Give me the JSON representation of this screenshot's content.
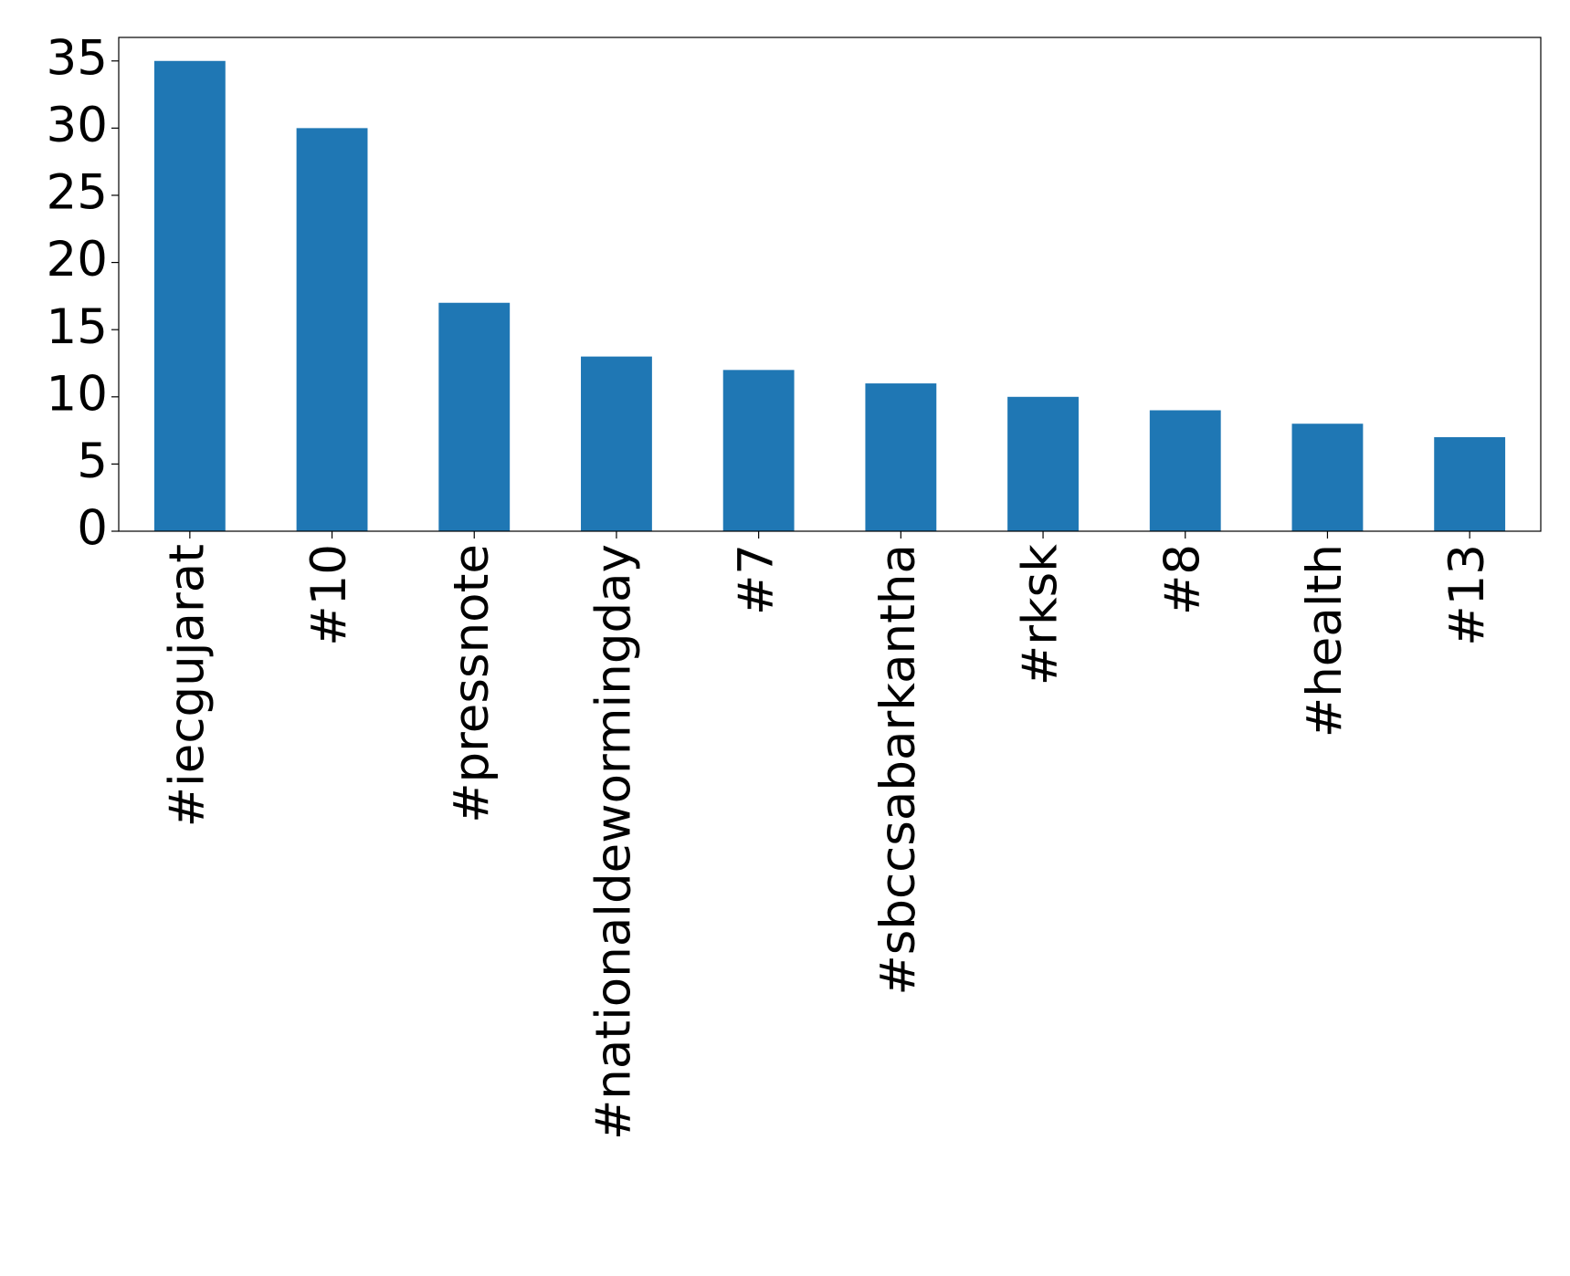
{
  "chart_data": {
    "type": "bar",
    "categories": [
      "#iecgujarat",
      "#10",
      "#pressnote",
      "#nationaldewormingday",
      "#7",
      "#sbccsabarkantha",
      "#rksk",
      "#8",
      "#health",
      "#13"
    ],
    "values": [
      35,
      30,
      17,
      13,
      12,
      11,
      10,
      9,
      8,
      7
    ],
    "color": "#1f77b4",
    "ylim": [
      0,
      36.75
    ],
    "yticks": [
      0,
      5,
      10,
      15,
      20,
      25,
      30,
      35
    ],
    "grid": false
  }
}
